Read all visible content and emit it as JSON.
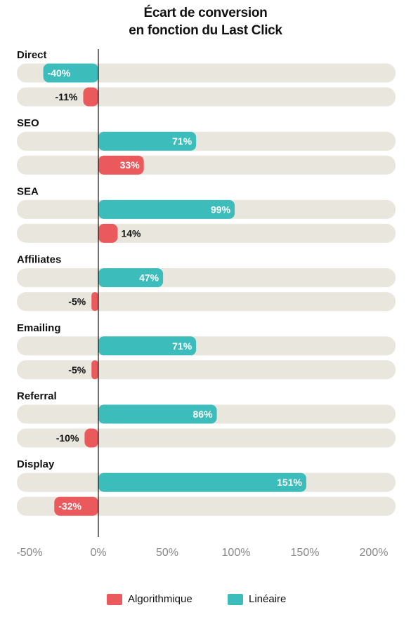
{
  "chart_data": {
    "type": "bar",
    "orientation": "horizontal",
    "title": "Écart de conversion",
    "subtitle": "en fonction du Last Click",
    "categories": [
      "Direct",
      "SEO",
      "SEA",
      "Affiliates",
      "Emailing",
      "Referral",
      "Display"
    ],
    "series": [
      {
        "name": "Linéaire",
        "color": "#3dbcbc",
        "values": [
          -40,
          71,
          99,
          47,
          71,
          86,
          151
        ],
        "labels": [
          "-40%",
          "71%",
          "99%",
          "47%",
          "71%",
          "86%",
          "151%"
        ]
      },
      {
        "name": "Algorithmique",
        "color": "#ea5a5c",
        "values": [
          -11,
          33,
          14,
          -5,
          -5,
          -10,
          -32
        ],
        "labels": [
          "-11%",
          "33%",
          "14%",
          "-5%",
          "-5%",
          "-10%",
          "-32%"
        ]
      }
    ],
    "xlim": [
      -50,
      200
    ],
    "x_ticks": [
      -50,
      0,
      50,
      100,
      150,
      200
    ],
    "x_tick_labels": [
      "-50%",
      "0%",
      "50%",
      "100%",
      "150%",
      "200%"
    ],
    "track_color": "#e9e6de",
    "grid": false,
    "legend": {
      "position": "bottom",
      "items": [
        {
          "label": "Algorithmique",
          "color": "#ea5a5c"
        },
        {
          "label": "Linéaire",
          "color": "#3dbcbc"
        }
      ]
    }
  }
}
